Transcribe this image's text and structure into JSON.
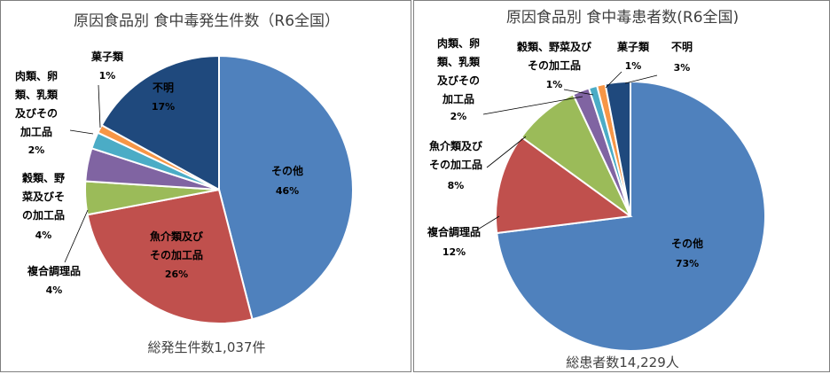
{
  "chart_data": [
    {
      "type": "pie",
      "title": "原因食品別 食中毒発生件数（R6全国）",
      "footer": "総発生件数1,037件",
      "slices": [
        {
          "name": "その他",
          "value": 46,
          "pct_label": "46%",
          "color": "#4f81bd"
        },
        {
          "name": "魚介類及びその加工品",
          "value": 26,
          "pct_label": "26%",
          "color": "#c0504d"
        },
        {
          "name": "複合調理品",
          "value": 4,
          "pct_label": "4%",
          "color": "#9bbb59"
        },
        {
          "name": "穀類、野菜及びその加工品",
          "value": 4,
          "pct_label": "4%",
          "color": "#8064a2"
        },
        {
          "name": "肉類、卵類、乳類及びその加工品",
          "value": 2,
          "pct_label": "2%",
          "color": "#4bacc6"
        },
        {
          "name": "菓子類",
          "value": 1,
          "pct_label": "1%",
          "color": "#f79646"
        },
        {
          "name": "不明",
          "value": 17,
          "pct_label": "17%",
          "color": "#1f497d"
        }
      ]
    },
    {
      "type": "pie",
      "title": "原因食品別 食中毒患者数(R6全国)",
      "footer": "総患者数14,229人",
      "slices": [
        {
          "name": "その他",
          "value": 73,
          "pct_label": "73%",
          "color": "#4f81bd"
        },
        {
          "name": "複合調理品",
          "value": 12,
          "pct_label": "12%",
          "color": "#c0504d"
        },
        {
          "name": "魚介類及びその加工品",
          "value": 8,
          "pct_label": "8%",
          "color": "#9bbb59"
        },
        {
          "name": "肉類、卵類、乳類及びその加工品",
          "value": 2,
          "pct_label": "2%",
          "color": "#8064a2"
        },
        {
          "name": "穀類、野菜及びその加工品",
          "value": 1,
          "pct_label": "1%",
          "color": "#4bacc6"
        },
        {
          "name": "菓子類",
          "value": 1,
          "pct_label": "1%",
          "color": "#f79646"
        },
        {
          "name": "不明",
          "value": 3,
          "pct_label": "3%",
          "color": "#1f497d"
        }
      ]
    }
  ]
}
